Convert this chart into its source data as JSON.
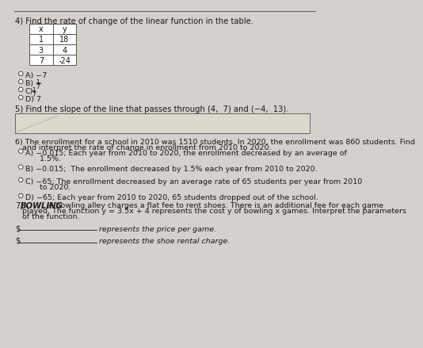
{
  "bg_color": "#d4d0cb",
  "title4": "4) Find the rate of change of the linear function in the table.",
  "table_x": [
    "x",
    "1",
    "3",
    "7"
  ],
  "table_y": [
    "y",
    "18",
    "4",
    "-24"
  ],
  "q5": "5) Find the slope of the line that passes through (4,  7) and (−4,  13).",
  "q6_line1": "6) The enrollment for a school in 2010 was 1510 students. In 2020, the enrollment was 860 students. Find",
  "q6_line2": "   and interpret the rate of change in enrollment from 2010 to 2020.",
  "opt_A6_1": "A) −0.015; Each year from 2010 to 2020, the enrollment decreased by an average of",
  "opt_A6_2": "      1.5%.",
  "opt_B6": "B) −0.015;  The enrollment decreased by 1.5% each year from 2010 to 2020.",
  "opt_C6_1": "C) −65; The enrollment decreased by an average rate of 65 students per year from 2010",
  "opt_C6_2": "      to 2020.",
  "opt_D6": "D) −65; Each year from 2010 to 2020, 65 students dropped out of the school.",
  "q7_bold": "BOWLING",
  "q7_rest1": " A bowling alley charges a flat fee to rent shoes. There is an additional fee for each game",
  "q7_line2": "   played. The function y = 3.5x + 4 represents the cost y of bowling x games. Interpret the parameters",
  "q7_line3": "   of the function.",
  "q7_fill1": "represents the price per game.",
  "q7_fill2": "represents the shoe rental charge.",
  "text_color": "#1a1a1a",
  "circle_color": "#444444",
  "table_border": "#555555",
  "box_fill": "#ddd8cc",
  "box_edge": "#666666",
  "line_color": "#555555"
}
